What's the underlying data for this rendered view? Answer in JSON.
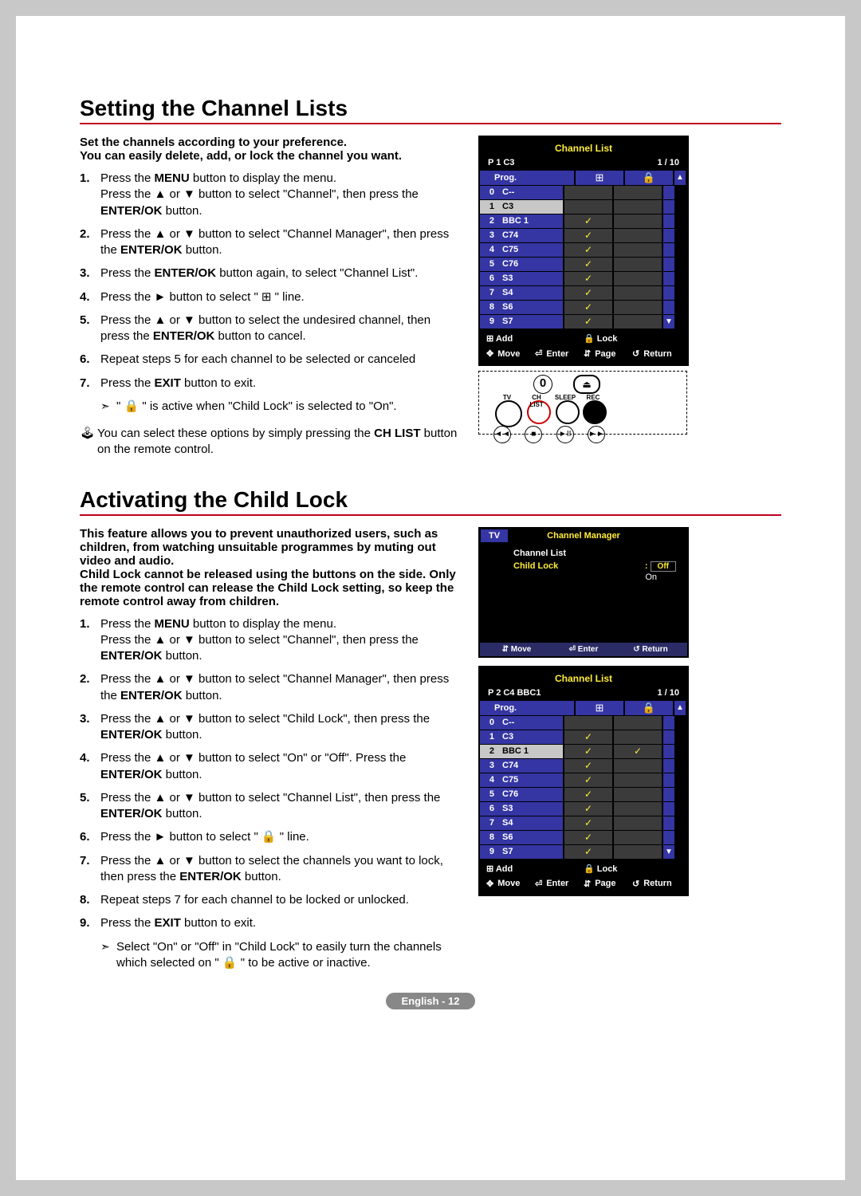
{
  "section1": {
    "heading": "Setting the Channel Lists",
    "intro_line1": "Set the channels according to your preference.",
    "intro_line2": "You can easily delete, add, or lock the channel you want.",
    "steps": [
      "Press the <b>MENU</b> button to display the menu.<br>Press the ▲ or ▼ button to select \"Channel\", then press the <b>ENTER/OK</b> button.",
      "Press the ▲ or ▼ button to select \"Channel Manager\", then press the <b>ENTER/OK</b> button.",
      "Press the <b>ENTER/OK</b> button again, to select \"Channel List\".",
      "Press the ► button to select \" ⊞ \" line.",
      "Press the ▲ or ▼ button to select the undesired channel, then press the <b>ENTER/OK</b> button to cancel.",
      "Repeat steps 5 for each channel to be selected or canceled",
      "Press the <b>EXIT</b> button to exit."
    ],
    "note1": "\" 🔒 \" is active when \"Child Lock\" is selected to \"On\".",
    "note2": "You can select these options by simply pressing the <b>CH LIST</b> button on the remote control."
  },
  "osd1": {
    "title": "Channel List",
    "status_left": "P  1  C3",
    "status_right": "1 / 10",
    "prog_label": "Prog.",
    "rows": [
      {
        "n": "0",
        "name": "C--",
        "add": false,
        "lock": false,
        "sel": false
      },
      {
        "n": "1",
        "name": "C3",
        "add": false,
        "lock": false,
        "sel": true
      },
      {
        "n": "2",
        "name": "BBC 1",
        "add": true,
        "lock": false,
        "sel": false
      },
      {
        "n": "3",
        "name": "C74",
        "add": true,
        "lock": false,
        "sel": false
      },
      {
        "n": "4",
        "name": "C75",
        "add": true,
        "lock": false,
        "sel": false
      },
      {
        "n": "5",
        "name": "C76",
        "add": true,
        "lock": false,
        "sel": false
      },
      {
        "n": "6",
        "name": "S3",
        "add": true,
        "lock": false,
        "sel": false
      },
      {
        "n": "7",
        "name": "S4",
        "add": true,
        "lock": false,
        "sel": false
      },
      {
        "n": "8",
        "name": "S6",
        "add": true,
        "lock": false,
        "sel": false
      },
      {
        "n": "9",
        "name": "S7",
        "add": true,
        "lock": false,
        "sel": false
      }
    ],
    "add": "Add",
    "lock": "Lock",
    "move": "Move",
    "enter": "Enter",
    "page": "Page",
    "return": "Return"
  },
  "section2": {
    "heading": "Activating the Child Lock",
    "intro": "This feature allows you to prevent unauthorized users, such as children, from watching unsuitable programmes by muting out video and audio.<br>Child Lock cannot be released using the buttons on the side. Only the remote control can release the Child Lock setting, so keep the remote control away from children.",
    "steps": [
      "Press the <b>MENU</b> button to display the menu.<br>Press the ▲ or ▼ button to select \"Channel\", then press the <b>ENTER/OK</b> button.",
      "Press the ▲ or ▼ button to select \"Channel Manager\", then press the <b>ENTER/OK</b> button.",
      "Press the ▲ or ▼ button to select \"Child Lock\", then press the <b>ENTER/OK</b> button.",
      "Press the ▲ or ▼ button to select \"On\" or \"Off\". Press the <b>ENTER/OK</b> button.",
      "Press the ▲ or ▼ button to select \"Channel List\", then press the <b>ENTER/OK</b> button.",
      "Press the ► button to select \" 🔒 \" line.",
      "Press the ▲ or ▼ button to select the channels you want to lock, then press the <b>ENTER/OK</b> button.",
      "Repeat steps 7 for each channel to be locked or unlocked.",
      "Press the <b>EXIT</b> button to exit."
    ],
    "note": "Select \"On\" or \"Off\" in \"Child Lock\" to easily turn the channels which selected on \" 🔒 \" to be active or inactive."
  },
  "osd2": {
    "tv": "TV",
    "title": "Channel Manager",
    "opt1": "Channel List",
    "opt2": "Child Lock",
    "val": "Off",
    "on": "On",
    "move": "Move",
    "enter": "Enter",
    "return": "Return"
  },
  "osd3": {
    "title": "Channel List",
    "status_left": "P  2  C4      BBC1",
    "status_right": "1 / 10",
    "prog_label": "Prog.",
    "rows": [
      {
        "n": "0",
        "name": "C--",
        "add": false,
        "lock": false,
        "sel": false
      },
      {
        "n": "1",
        "name": "C3",
        "add": true,
        "lock": false,
        "sel": false
      },
      {
        "n": "2",
        "name": "BBC 1",
        "add": true,
        "lock": true,
        "sel": true
      },
      {
        "n": "3",
        "name": "C74",
        "add": true,
        "lock": false,
        "sel": false
      },
      {
        "n": "4",
        "name": "C75",
        "add": true,
        "lock": false,
        "sel": false
      },
      {
        "n": "5",
        "name": "C76",
        "add": true,
        "lock": false,
        "sel": false
      },
      {
        "n": "6",
        "name": "S3",
        "add": true,
        "lock": false,
        "sel": false
      },
      {
        "n": "7",
        "name": "S4",
        "add": true,
        "lock": false,
        "sel": false
      },
      {
        "n": "8",
        "name": "S6",
        "add": true,
        "lock": false,
        "sel": false
      },
      {
        "n": "9",
        "name": "S7",
        "add": true,
        "lock": false,
        "sel": false
      }
    ],
    "add": "Add",
    "lock": "Lock",
    "move": "Move",
    "enter": "Enter",
    "page": "Page",
    "return": "Return"
  },
  "footer": "English - 12",
  "remote": {
    "zero": "0",
    "tv": "TV",
    "chlist": "CH LIST",
    "sleep": "SLEEP",
    "rec": "REC",
    "rew": "REW",
    "stop": "STOP",
    "play": "PLAY/PAUSE",
    "ff": "FF"
  }
}
